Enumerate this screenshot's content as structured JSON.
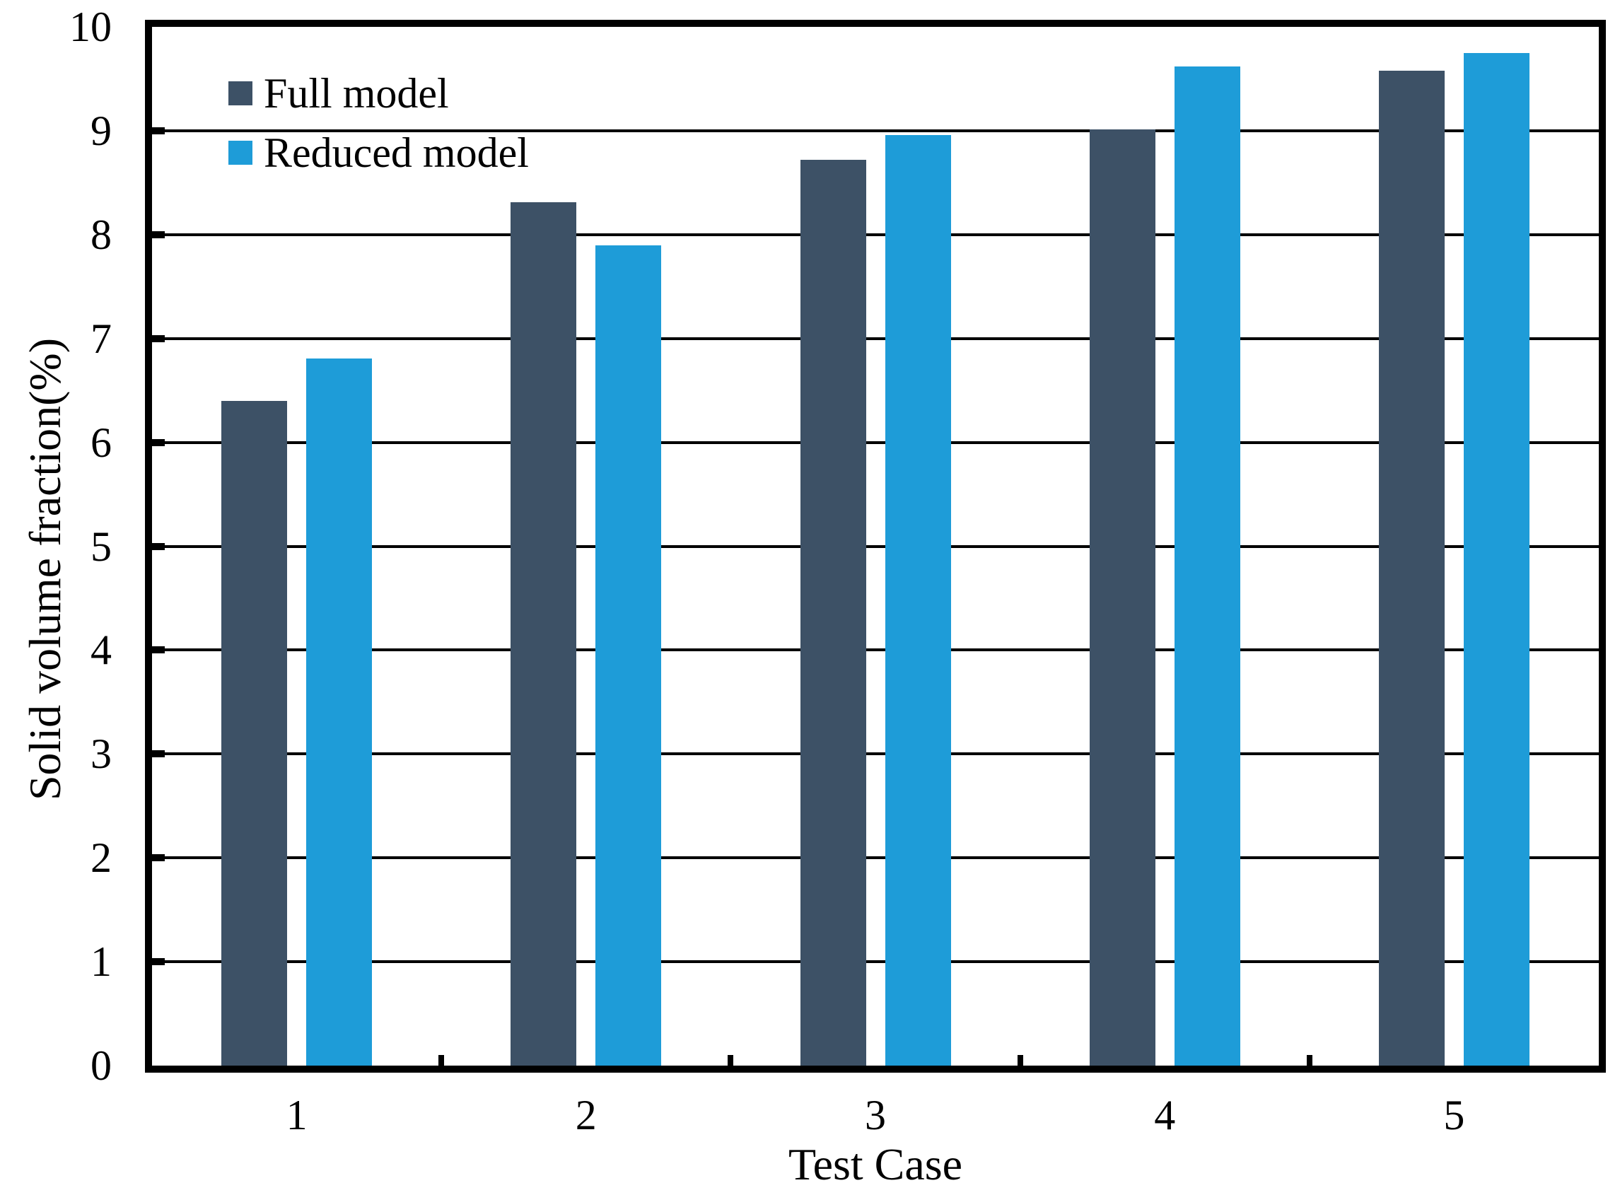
{
  "chart_data": {
    "type": "bar",
    "title": "",
    "categories": [
      "1",
      "2",
      "3",
      "4",
      "5"
    ],
    "series": [
      {
        "name": "Full model",
        "color": "#3d5166",
        "values": [
          6.4,
          8.31,
          8.72,
          9.01,
          9.58
        ]
      },
      {
        "name": "Reduced model",
        "color": "#1e9cd8",
        "values": [
          6.81,
          7.9,
          8.96,
          9.62,
          9.75
        ]
      }
    ],
    "xlabel": "Test Case",
    "ylabel": "Solid volume fraction(%)",
    "ylim": [
      0,
      10
    ],
    "yticks": [
      0,
      1,
      2,
      3,
      4,
      5,
      6,
      7,
      8,
      9,
      10
    ],
    "grid": "horizontal",
    "legend_position": "top-left",
    "axis_color": "#000000",
    "background_color": "#ffffff"
  }
}
